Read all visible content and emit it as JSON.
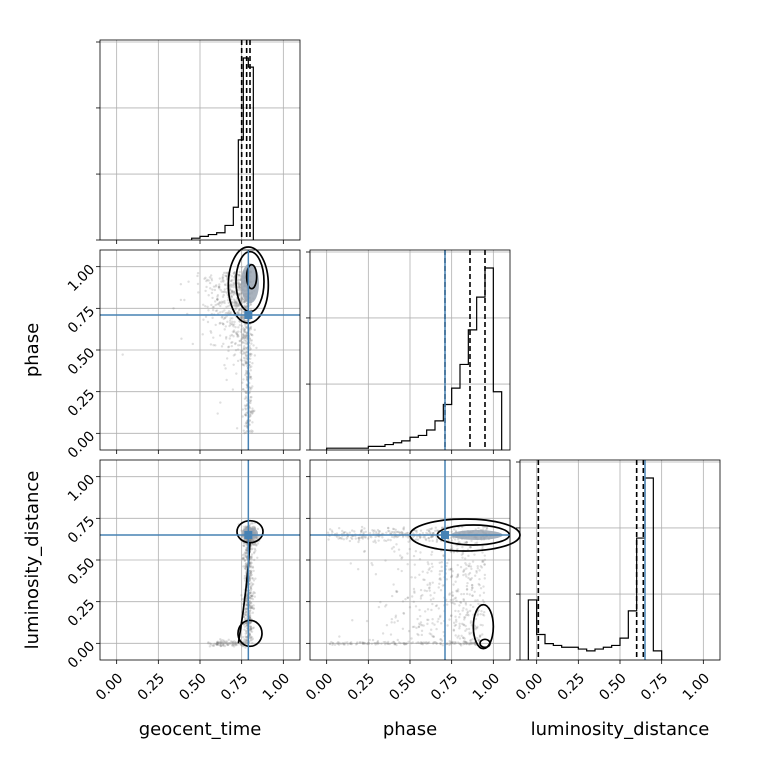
{
  "chart_data": {
    "type": "scatter",
    "subtype": "corner-plot",
    "parameters": [
      "geocent_time",
      "phase",
      "luminosity_distance"
    ],
    "axis_range": [
      -0.1,
      1.1
    ],
    "tick_values": [
      0.0,
      0.25,
      0.5,
      0.75,
      1.0
    ],
    "tick_labels": [
      "0.00",
      "0.25",
      "0.50",
      "0.75",
      "1.00"
    ],
    "grid": true,
    "truths": {
      "geocent_time": 0.79,
      "phase": 0.71,
      "luminosity_distance": 0.65
    },
    "colors": {
      "truth": "#4682b4",
      "contour": "#000000",
      "samples": "#808080",
      "fill": "#9aa4b1"
    },
    "histograms": {
      "geocent_time": {
        "bin_edges": [
          0.45,
          0.5,
          0.55,
          0.6,
          0.65,
          0.7,
          0.73,
          0.76,
          0.79,
          0.82
        ],
        "counts": [
          1,
          2,
          3,
          4,
          8,
          18,
          55,
          100,
          95
        ],
        "quantiles": [
          0.75,
          0.78,
          0.8
        ]
      },
      "phase": {
        "bin_edges": [
          0.0,
          0.05,
          0.1,
          0.15,
          0.2,
          0.25,
          0.3,
          0.35,
          0.4,
          0.45,
          0.5,
          0.55,
          0.6,
          0.65,
          0.7,
          0.75,
          0.8,
          0.85,
          0.9,
          0.95,
          1.0,
          1.05
        ],
        "counts": [
          1,
          1,
          1,
          1,
          1,
          2,
          2,
          3,
          4,
          5,
          7,
          8,
          11,
          16,
          25,
          34,
          47,
          66,
          84,
          100,
          32
        ],
        "quantiles": [
          0.71,
          0.86,
          0.95
        ]
      },
      "luminosity_distance": {
        "bin_edges": [
          -0.05,
          0.0,
          0.05,
          0.1,
          0.15,
          0.2,
          0.25,
          0.3,
          0.35,
          0.4,
          0.45,
          0.5,
          0.55,
          0.6,
          0.65,
          0.7,
          0.75
        ],
        "counts": [
          33,
          14,
          9,
          8,
          7,
          7,
          6,
          5,
          6,
          7,
          8,
          12,
          27,
          67,
          100,
          5
        ],
        "quantiles": [
          0.01,
          0.6,
          0.64
        ]
      }
    }
  }
}
